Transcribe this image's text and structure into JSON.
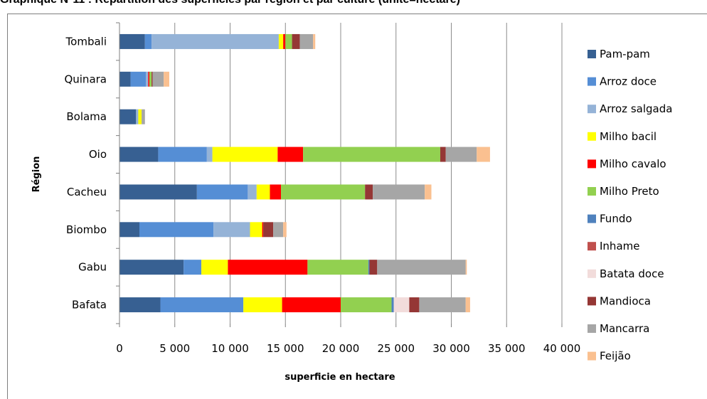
{
  "chart_data": {
    "type": "bar",
    "orientation": "horizontal",
    "stacked": true,
    "title": "Graphique N°11 : Répartition des superficies par région et par culture (unité=hectare)",
    "xlabel": "superficie en hectare",
    "ylabel": "Région",
    "xlim": [
      0,
      40000
    ],
    "xticks": [
      0,
      5000,
      10000,
      15000,
      20000,
      25000,
      30000,
      35000,
      40000
    ],
    "xtick_labels": [
      "0",
      "5 000",
      "10 000",
      "15 000",
      "20 000",
      "25 000",
      "30 000",
      "35 000",
      "40 000"
    ],
    "grid": "vertical",
    "legend_position": "right",
    "categories": [
      "Tombali",
      "Quinara",
      "Bolama",
      "Oio",
      "Cacheu",
      "Biombo",
      "Gabu",
      "Bafata"
    ],
    "series": [
      {
        "name": "Pam-pam",
        "color": "#376092",
        "values": [
          2300,
          1000,
          1500,
          3500,
          7000,
          1800,
          5800,
          3700
        ]
      },
      {
        "name": "Arroz doce",
        "color": "#558ed5",
        "values": [
          600,
          1400,
          0,
          4400,
          4600,
          6700,
          1600,
          7500
        ]
      },
      {
        "name": "Arroz salgada",
        "color": "#95b3d7",
        "values": [
          11500,
          200,
          200,
          500,
          800,
          3300,
          0,
          0
        ]
      },
      {
        "name": "Milho bacil",
        "color": "#ffff00",
        "values": [
          400,
          0,
          300,
          5900,
          1200,
          1100,
          2400,
          3500
        ]
      },
      {
        "name": "Milho cavalo",
        "color": "#ff0000",
        "values": [
          200,
          100,
          0,
          2300,
          1000,
          100,
          7200,
          5300
        ]
      },
      {
        "name": "Milho Preto",
        "color": "#92d050",
        "values": [
          600,
          200,
          0,
          12400,
          7600,
          0,
          5500,
          4600
        ]
      },
      {
        "name": "Fundo",
        "color": "#4f81bd",
        "values": [
          0,
          0,
          0,
          0,
          0,
          0,
          100,
          200
        ]
      },
      {
        "name": "Inhame",
        "color": "#c0504d",
        "values": [
          0,
          0,
          0,
          0,
          0,
          0,
          0,
          0
        ]
      },
      {
        "name": "Batata doce",
        "color": "#f2dcdb",
        "values": [
          0,
          0,
          0,
          0,
          0,
          0,
          0,
          1400
        ]
      },
      {
        "name": "Mandioca",
        "color": "#953735",
        "values": [
          700,
          100,
          0,
          500,
          700,
          900,
          700,
          900
        ]
      },
      {
        "name": "Mancarra",
        "color": "#a6a6a6",
        "values": [
          1200,
          1000,
          300,
          2800,
          4700,
          900,
          8000,
          4200
        ]
      },
      {
        "name": "Feijão",
        "color": "#fac090",
        "values": [
          200,
          500,
          0,
          1200,
          600,
          300,
          100,
          400
        ]
      }
    ]
  }
}
